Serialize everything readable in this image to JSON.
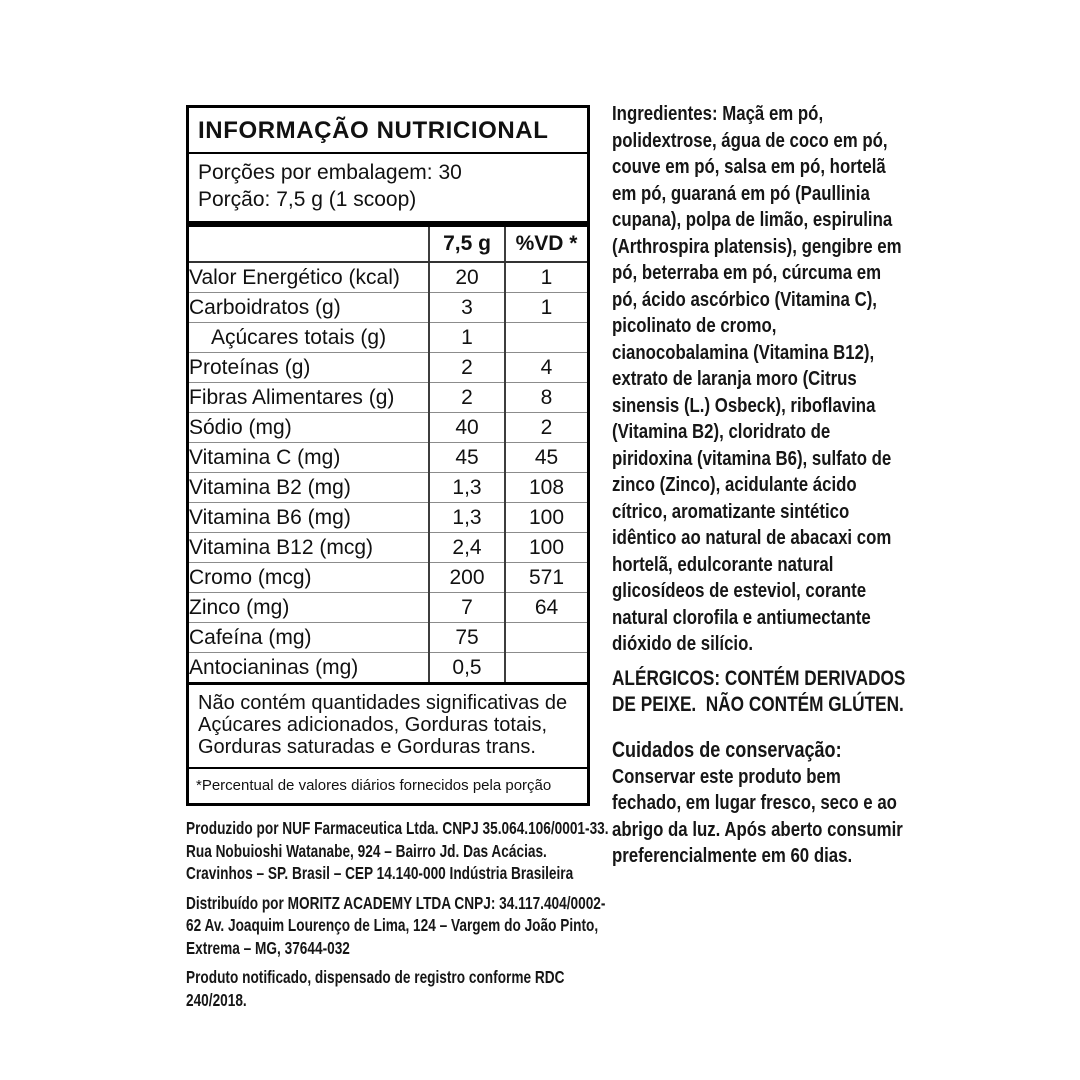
{
  "table": {
    "title": "INFORMAÇÃO NUTRICIONAL",
    "servings_line1": "Porções por embalagem: 30",
    "servings_line2": "Porção: 7,5 g (1 scoop)",
    "col_headers": [
      "",
      "7,5 g",
      "%VD *"
    ],
    "rows": [
      {
        "label": "Valor Energético (kcal)",
        "amount": "20",
        "vd": "1",
        "indent": false
      },
      {
        "label": "Carboidratos (g)",
        "amount": "3",
        "vd": "1",
        "indent": false
      },
      {
        "label": "Açúcares totais (g)",
        "amount": "1",
        "vd": "",
        "indent": true
      },
      {
        "label": "Proteínas (g)",
        "amount": "2",
        "vd": "4",
        "indent": false
      },
      {
        "label": "Fibras Alimentares (g)",
        "amount": "2",
        "vd": "8",
        "indent": false
      },
      {
        "label": "Sódio (mg)",
        "amount": "40",
        "vd": "2",
        "indent": false
      },
      {
        "label": "Vitamina C (mg)",
        "amount": "45",
        "vd": "45",
        "indent": false
      },
      {
        "label": "Vitamina B2 (mg)",
        "amount": "1,3",
        "vd": "108",
        "indent": false
      },
      {
        "label": "Vitamina B6 (mg)",
        "amount": "1,3",
        "vd": "100",
        "indent": false
      },
      {
        "label": "Vitamina B12 (mcg)",
        "amount": "2,4",
        "vd": "100",
        "indent": false
      },
      {
        "label": "Cromo (mcg)",
        "amount": "200",
        "vd": "571",
        "indent": false
      },
      {
        "label": "Zinco (mg)",
        "amount": "7",
        "vd": "64",
        "indent": false
      },
      {
        "label": "Cafeína (mg)",
        "amount": "75",
        "vd": "",
        "indent": false
      },
      {
        "label": "Antocianinas (mg)",
        "amount": "0,5",
        "vd": "",
        "indent": false
      }
    ],
    "note": "Não contém quantidades significativas de Açúcares adicionados, Gorduras totais, Gorduras saturadas e Gorduras trans.",
    "footnote": "*Percentual de valores diários fornecidos pela porção"
  },
  "manufacturer": {
    "produced": "Produzido por NUF Farmaceutica Ltda. CNPJ 35.064.106/0001-33. Rua Nobuioshi Watanabe, 924 – Bairro Jd. Das Acácias. Cravinhos – SP. Brasil – CEP 14.140-000 Indústria Brasileira",
    "distributed": "Distribuído por MORITZ ACADEMY LTDA CNPJ: 34.117.404/0002-62 Av. Joaquim Lourenço de Lima, 124 – Vargem do João Pinto, Extrema – MG, 37644-032",
    "notice": "Produto notificado, dispensado de registro conforme RDC 240/2018."
  },
  "right_column": {
    "ingredients_label": "Ingredientes:",
    "ingredients_text": " Maçã em pó, polidextrose, água de coco em pó, couve em pó, salsa em pó, hortelã em pó, guaraná em pó (Paullinia cupana), polpa de limão, espirulina (Arthrospira platensis), gengibre em pó, beterraba em pó, cúrcuma em pó, ácido ascórbico (Vitamina C), picolinato de cromo, cianocobalamina (Vitamina B12), extrato de laranja moro (Citrus sinensis (L.) Osbeck), riboflavina (Vitamina B2), cloridrato de piridoxina (vitamina B6), sulfato de zinco (Zinco), acidulante ácido cítrico, aromatizante sintético idêntico ao natural de abacaxi com hortelã, edulcorante natural glicosídeos de esteviol, corante natural clorofila e antiumectante dióxido de silício.",
    "allergens": "ALÉRGICOS: CONTÉM DERIVADOS DE PEIXE.  NÃO CONTÉM GLÚTEN.",
    "care_label": "Cuidados de conservação:",
    "care_text": "Conservar este produto bem fechado, em lugar fresco, seco e ao abrigo da luz. Após aberto consumir preferencialmente em 60 dias."
  },
  "colors": {
    "text": "#161616",
    "border_strong": "#000000",
    "row_divider": "#8c8c8c",
    "column_divider": "#3d3d3d",
    "background": "#ffffff"
  }
}
